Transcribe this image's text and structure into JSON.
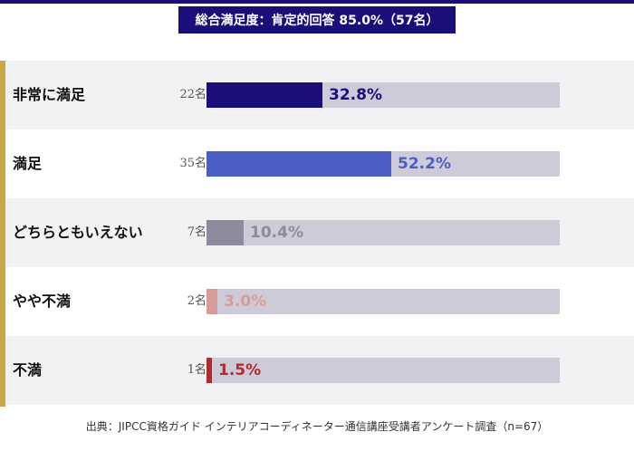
{
  "summary": {
    "label": "総合満足度：肯定的回答 85.0%（57名）"
  },
  "source": "出典：JIPCC資格ガイド インテリアコーディネーター通信講座受講者アンケート調査（n=67）",
  "chart_data": {
    "type": "bar",
    "orientation": "horizontal",
    "xlim": [
      0,
      100
    ],
    "grid": false,
    "categories": [
      "非常に満足",
      "満足",
      "どちらともいえない",
      "やや不満",
      "不満"
    ],
    "counts": [
      "22名",
      "35名",
      "7名",
      "2名",
      "1名"
    ],
    "values": [
      32.8,
      52.2,
      10.4,
      3.0,
      1.5
    ],
    "value_labels": [
      "32.8%",
      "52.2%",
      "10.4%",
      "3.0%",
      "1.5%"
    ],
    "colors": [
      "#1a0f7a",
      "#4b5ec6",
      "#8c8a9c",
      "#d99a9a",
      "#b22a2a"
    ],
    "track_color": "#cdcbd8"
  }
}
